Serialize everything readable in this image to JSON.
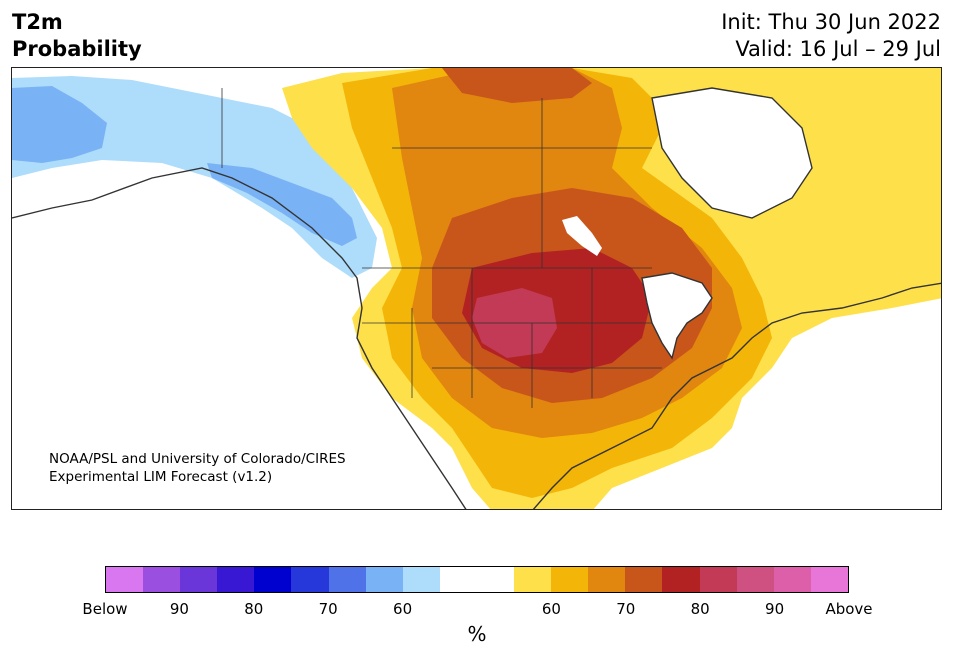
{
  "header": {
    "variable": "T2m",
    "metric": "Probability",
    "init": "Init: Thu 30 Jun 2022",
    "valid": "Valid: 16 Jul – 29 Jul"
  },
  "credit": {
    "line1": "NOAA/PSL and University of Colorado/CIRES",
    "line2": "Experimental LIM Forecast (v1.2)"
  },
  "colorbar": {
    "colors": [
      "#d977f0",
      "#9b4fe0",
      "#6a35d9",
      "#3818d3",
      "#0000cf",
      "#2638d9",
      "#4f72e8",
      "#79b2f5",
      "#aedcfb",
      "#ffffff",
      "#ffffff",
      "#fee14a",
      "#f4b509",
      "#e1860f",
      "#c8561b",
      "#b22222",
      "#c23a55",
      "#cf5182",
      "#dd5fa9",
      "#e876d8"
    ],
    "labels": [
      "Below",
      "90",
      "80",
      "70",
      "60",
      "60",
      "70",
      "80",
      "90",
      "Above"
    ],
    "unit": "%"
  },
  "map": {
    "category_colors": {
      "cold_60": "#aedcfb",
      "cold_70": "#79b2f5",
      "warm_60": "#fee14a",
      "warm_70": "#f4b509",
      "warm_80": "#e1860f",
      "warm_90": "#c8561b",
      "warm_95": "#b22222",
      "warm_above": "#c23a55",
      "warm_top": "#cf5182",
      "land_outline": "#333333",
      "lakes": "#ffffff"
    }
  }
}
